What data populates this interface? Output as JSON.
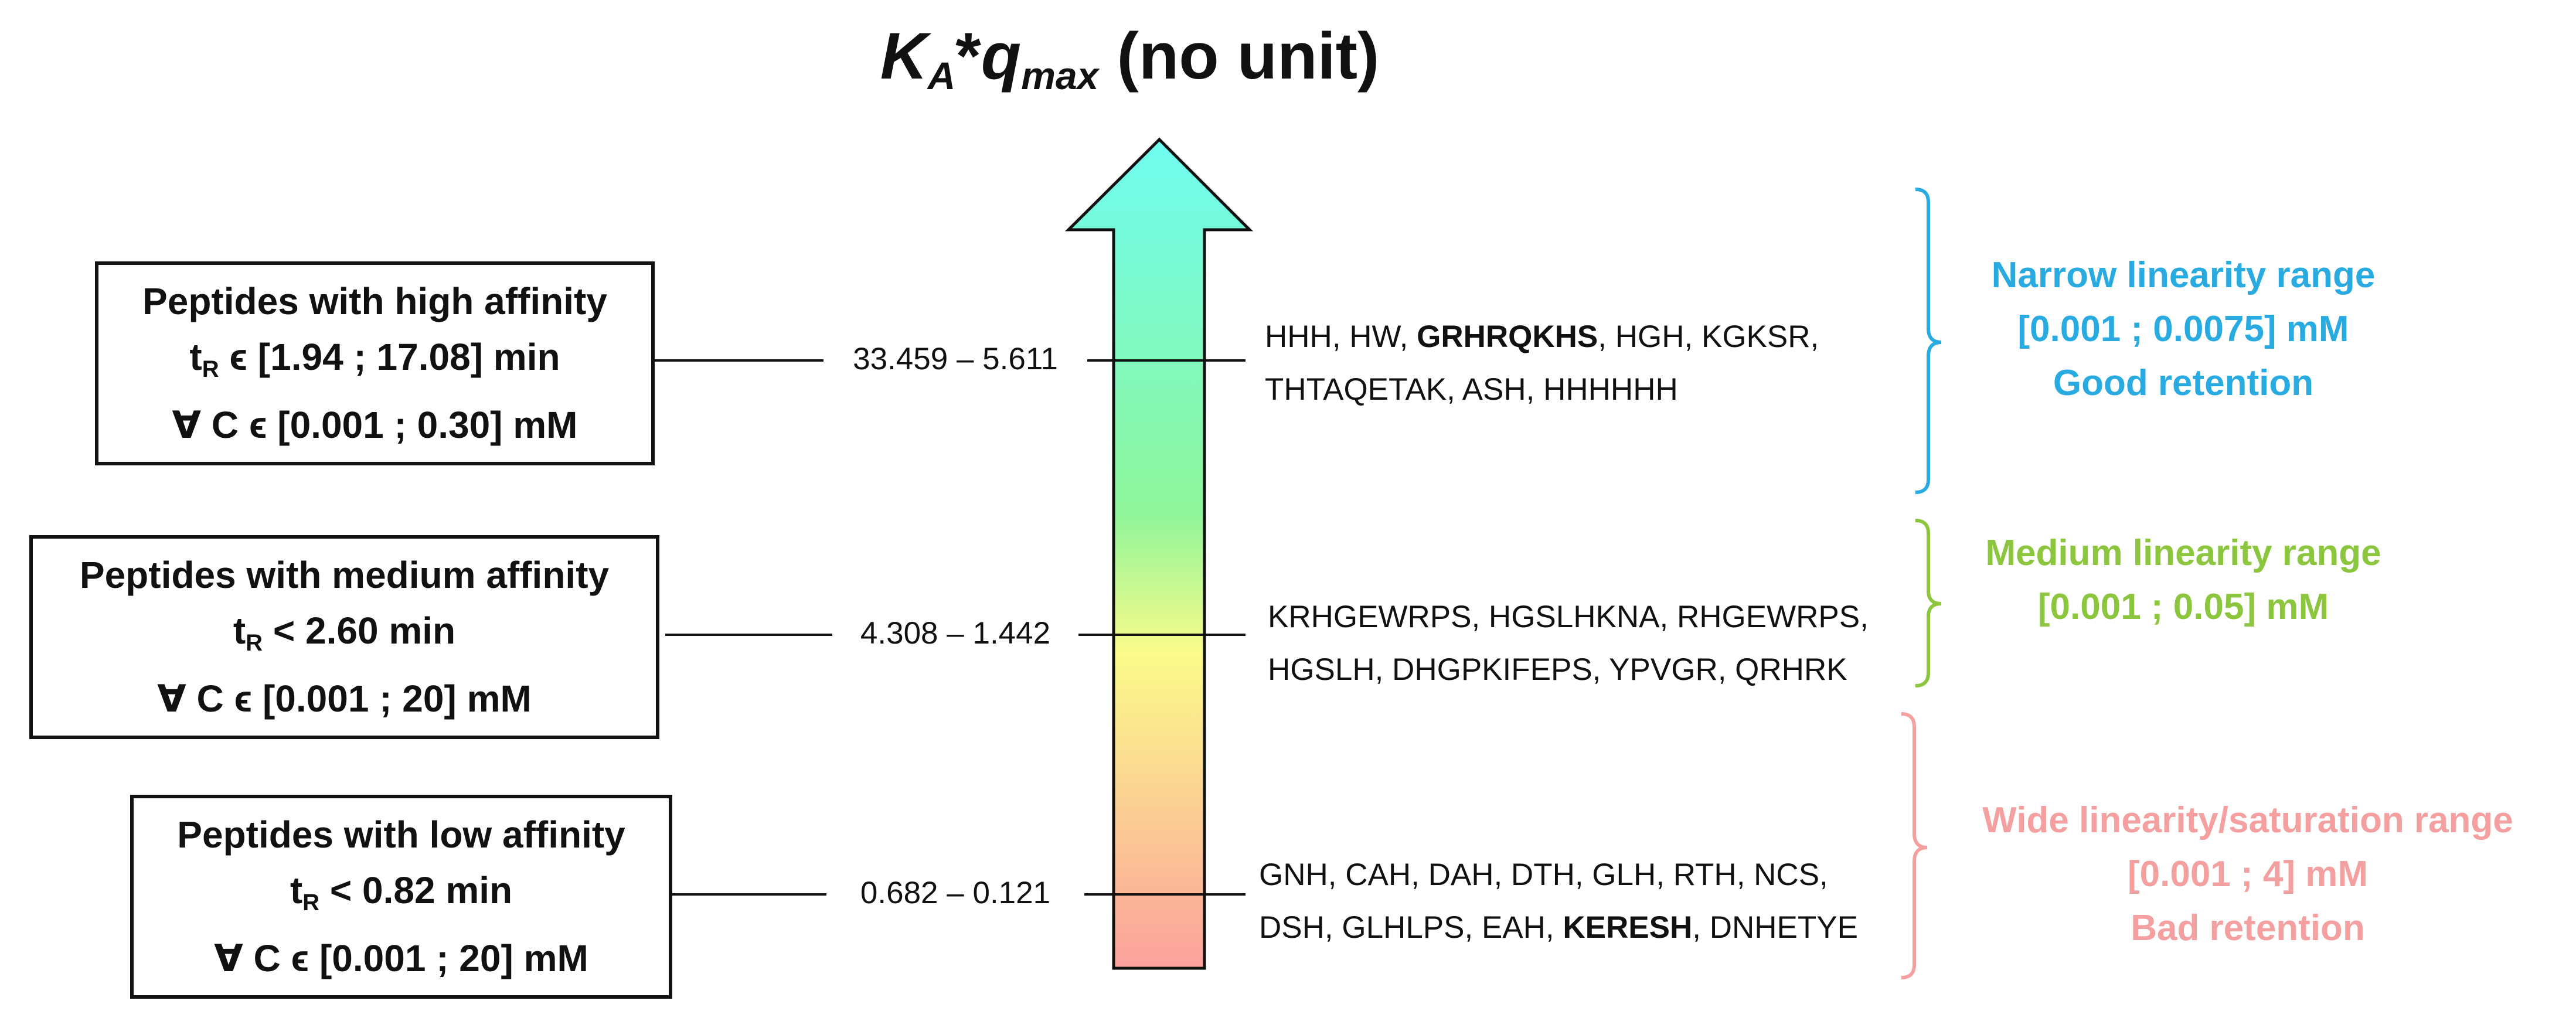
{
  "title": {
    "k": "K",
    "k_sub": "A",
    "star": "*",
    "q": "q",
    "q_sub": "max",
    "unit": "(no unit)"
  },
  "tiers": [
    {
      "name": "high",
      "box": {
        "line1": "Peptides with high affinity",
        "tr_label": "t",
        "tr_sub": "R",
        "tr_rest": " ϵ [1.94 ; 17.08] min",
        "conc": "∀ C ϵ [0.001 ; 0.30] mM"
      },
      "range": "33.459 – 5.611",
      "seq_line1_pre": "HHH, HW, ",
      "seq_line1_bold": "GRHRQKHS",
      "seq_line1_post": ", HGH, KGKSR,",
      "seq_line2": "THTAQETAK, ASH, HHHHHH"
    },
    {
      "name": "medium",
      "box": {
        "line1": "Peptides with medium affinity",
        "tr_label": "t",
        "tr_sub": "R",
        "tr_rest": " < 2.60 min",
        "conc": "∀ C ϵ [0.001 ; 20] mM"
      },
      "range": "4.308 – 1.442",
      "seq_line1_pre": "KRHGEWRPS, HGSLHKNA, RHGEWRPS,",
      "seq_line1_bold": "",
      "seq_line1_post": "",
      "seq_line2": "HGSLH, DHGPKIFEPS, YPVGR, QRHRK"
    },
    {
      "name": "low",
      "box": {
        "line1": "Peptides with low affinity",
        "tr_label": "t",
        "tr_sub": "R",
        "tr_rest": " < 0.82 min",
        "conc": "∀ C ϵ [0.001 ; 20] mM"
      },
      "range": "0.682 – 0.121",
      "seq_line1_pre": "GNH, CAH, DAH, DTH, GLH, RTH, NCS,",
      "seq_line1_bold": "",
      "seq_line1_post": "",
      "seq_line2_pre": "DSH, GLHLPS, EAH, ",
      "seq_line2_bold": "KERESH",
      "seq_line2_post": ", DNHETYE"
    }
  ],
  "brackets": [
    {
      "lines": [
        "Narrow linearity range",
        "[0.001 ; 0.0075] mM",
        "Good retention"
      ],
      "color": "#29abe2"
    },
    {
      "lines": [
        "Medium linearity range",
        "[0.001 ; 0.05] mM"
      ],
      "color": "#8cc63f"
    },
    {
      "lines": [
        "Wide linearity/saturation range",
        "[0.001 ; 4] mM",
        "Bad retention"
      ],
      "color": "#f4a0a0"
    }
  ],
  "arrow_colors": {
    "top": "#6ffcf0",
    "mid_green": "#8ef59a",
    "mid_yellow": "#fbfb8a",
    "bottom": "#fba19c"
  }
}
